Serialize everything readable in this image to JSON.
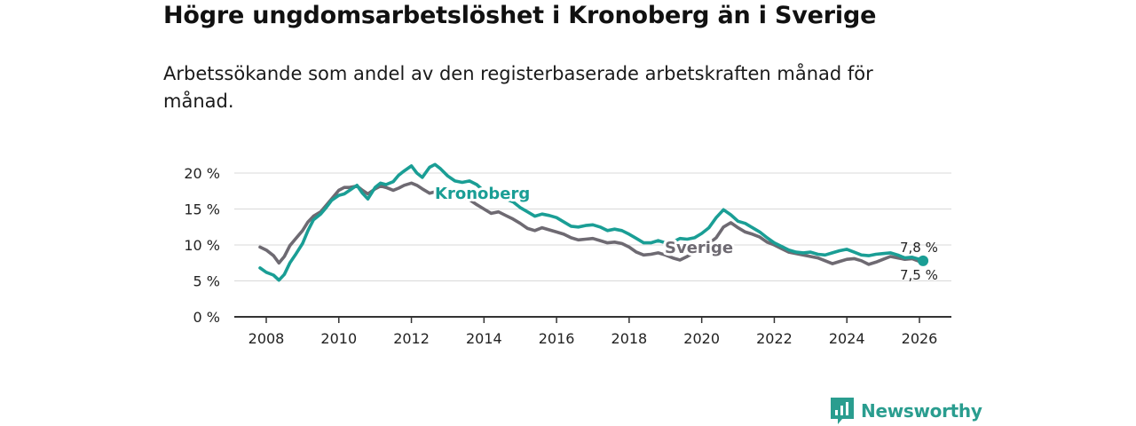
{
  "header": {
    "title": "Högre ungdomsarbetslöshet i Kronoberg än i Sverige",
    "subtitle": "Arbetssökande som andel av den registerbaserade arbetskraften månad för månad."
  },
  "brand": {
    "name": "Newsworthy",
    "icon": "newsworthy-logo-icon"
  },
  "colors": {
    "kronoberg": "#1a9e95",
    "sverige": "#6e6a72",
    "grid": "#d9d9d9",
    "axis": "#333333"
  },
  "chart_data": {
    "type": "line",
    "title": "Högre ungdomsarbetslöshet i Kronoberg än i Sverige",
    "xlabel": "",
    "ylabel": "",
    "xlim": [
      2007.5,
      2026.5
    ],
    "ylim": [
      0,
      20
    ],
    "grid": true,
    "x_ticks": [
      2008,
      2010,
      2012,
      2014,
      2016,
      2018,
      2020,
      2022,
      2024,
      2026
    ],
    "x_tick_labels": [
      "2008",
      "2010",
      "2012",
      "2014",
      "2016",
      "2018",
      "2020",
      "2022",
      "2024",
      "2026"
    ],
    "y_ticks": [
      0,
      5,
      10,
      15,
      20
    ],
    "y_tick_labels": [
      "0 %",
      "5 %",
      "10 %",
      "15 %",
      "20 %"
    ],
    "series": [
      {
        "name": "Sverige",
        "label": "Sverige",
        "end_label": "7,5 %",
        "x": [
          2007.83,
          2008.0,
          2008.2,
          2008.35,
          2008.5,
          2008.65,
          2008.8,
          2009.0,
          2009.15,
          2009.3,
          2009.5,
          2009.65,
          2009.8,
          2010.0,
          2010.15,
          2010.3,
          2010.5,
          2010.65,
          2010.8,
          2011.0,
          2011.15,
          2011.3,
          2011.5,
          2011.65,
          2011.8,
          2012.0,
          2012.15,
          2012.3,
          2012.5,
          2012.65,
          2012.8,
          2013.0,
          2013.2,
          2013.4,
          2013.6,
          2013.8,
          2014.0,
          2014.2,
          2014.4,
          2014.6,
          2014.8,
          2015.0,
          2015.2,
          2015.4,
          2015.6,
          2015.8,
          2016.0,
          2016.2,
          2016.4,
          2016.6,
          2016.8,
          2017.0,
          2017.2,
          2017.4,
          2017.6,
          2017.8,
          2018.0,
          2018.2,
          2018.4,
          2018.6,
          2018.8,
          2019.0,
          2019.2,
          2019.4,
          2019.6,
          2019.8,
          2020.0,
          2020.2,
          2020.4,
          2020.6,
          2020.8,
          2021.0,
          2021.2,
          2021.4,
          2021.6,
          2021.8,
          2022.0,
          2022.2,
          2022.4,
          2022.6,
          2022.8,
          2023.0,
          2023.2,
          2023.4,
          2023.6,
          2023.8,
          2024.0,
          2024.2,
          2024.4,
          2024.6,
          2024.8,
          2025.0,
          2025.2,
          2025.4,
          2025.6,
          2025.8,
          2026.0,
          2026.1
        ],
        "values": [
          9.7,
          9.3,
          8.5,
          7.5,
          8.4,
          9.9,
          10.8,
          12.0,
          13.2,
          14.0,
          14.6,
          15.5,
          16.4,
          17.6,
          18.0,
          18.0,
          18.2,
          17.6,
          17.1,
          17.8,
          18.2,
          18.0,
          17.6,
          17.9,
          18.3,
          18.6,
          18.3,
          17.8,
          17.2,
          17.4,
          18.0,
          17.6,
          17.2,
          16.5,
          16.3,
          15.6,
          15.0,
          14.4,
          14.6,
          14.1,
          13.6,
          13.0,
          12.3,
          12.0,
          12.4,
          12.1,
          11.8,
          11.5,
          11.0,
          10.7,
          10.8,
          10.9,
          10.6,
          10.3,
          10.4,
          10.2,
          9.7,
          9.0,
          8.6,
          8.7,
          8.9,
          8.6,
          8.2,
          7.9,
          8.4,
          9.0,
          9.5,
          10.2,
          11.0,
          12.5,
          13.1,
          12.4,
          11.8,
          11.5,
          11.1,
          10.4,
          10.0,
          9.5,
          9.0,
          8.8,
          8.6,
          8.4,
          8.2,
          7.8,
          7.4,
          7.7,
          8.0,
          8.1,
          7.8,
          7.3,
          7.6,
          8.0,
          8.4,
          8.2,
          8.0,
          8.1,
          7.7,
          7.5
        ]
      },
      {
        "name": "Kronoberg",
        "label": "Kronoberg",
        "end_label": "7,8 %",
        "x": [
          2007.83,
          2008.0,
          2008.2,
          2008.35,
          2008.5,
          2008.65,
          2008.8,
          2009.0,
          2009.15,
          2009.3,
          2009.5,
          2009.65,
          2009.8,
          2010.0,
          2010.15,
          2010.3,
          2010.5,
          2010.65,
          2010.8,
          2011.0,
          2011.15,
          2011.3,
          2011.5,
          2011.65,
          2011.8,
          2012.0,
          2012.15,
          2012.3,
          2012.5,
          2012.65,
          2012.8,
          2013.0,
          2013.2,
          2013.4,
          2013.6,
          2013.8,
          2014.0,
          2014.2,
          2014.4,
          2014.6,
          2014.8,
          2015.0,
          2015.2,
          2015.4,
          2015.6,
          2015.8,
          2016.0,
          2016.2,
          2016.4,
          2016.6,
          2016.8,
          2017.0,
          2017.2,
          2017.4,
          2017.6,
          2017.8,
          2018.0,
          2018.2,
          2018.4,
          2018.6,
          2018.8,
          2019.0,
          2019.2,
          2019.4,
          2019.6,
          2019.8,
          2020.0,
          2020.2,
          2020.4,
          2020.6,
          2020.8,
          2021.0,
          2021.2,
          2021.4,
          2021.6,
          2021.8,
          2022.0,
          2022.2,
          2022.4,
          2022.6,
          2022.8,
          2023.0,
          2023.2,
          2023.4,
          2023.6,
          2023.8,
          2024.0,
          2024.2,
          2024.4,
          2024.6,
          2024.8,
          2025.0,
          2025.2,
          2025.4,
          2025.6,
          2025.8,
          2026.0,
          2026.1
        ],
        "values": [
          6.8,
          6.2,
          5.8,
          5.1,
          5.9,
          7.5,
          8.6,
          10.2,
          12.0,
          13.5,
          14.3,
          15.2,
          16.2,
          16.9,
          17.1,
          17.6,
          18.3,
          17.2,
          16.4,
          18.0,
          18.6,
          18.4,
          18.8,
          19.7,
          20.3,
          21.0,
          20.0,
          19.4,
          20.8,
          21.2,
          20.6,
          19.6,
          18.9,
          18.7,
          18.9,
          18.4,
          17.5,
          16.7,
          16.6,
          16.4,
          16.0,
          15.2,
          14.6,
          14.0,
          14.3,
          14.1,
          13.8,
          13.2,
          12.6,
          12.5,
          12.7,
          12.8,
          12.5,
          12.0,
          12.2,
          12.0,
          11.5,
          10.9,
          10.3,
          10.3,
          10.6,
          10.3,
          10.4,
          10.9,
          10.8,
          11.0,
          11.6,
          12.4,
          13.8,
          14.9,
          14.2,
          13.3,
          13.0,
          12.4,
          11.8,
          11.0,
          10.3,
          9.8,
          9.3,
          9.0,
          8.9,
          9.0,
          8.7,
          8.6,
          8.9,
          9.2,
          9.4,
          9.0,
          8.6,
          8.5,
          8.7,
          8.8,
          8.9,
          8.6,
          8.2,
          8.3,
          8.0,
          7.8
        ]
      }
    ]
  }
}
